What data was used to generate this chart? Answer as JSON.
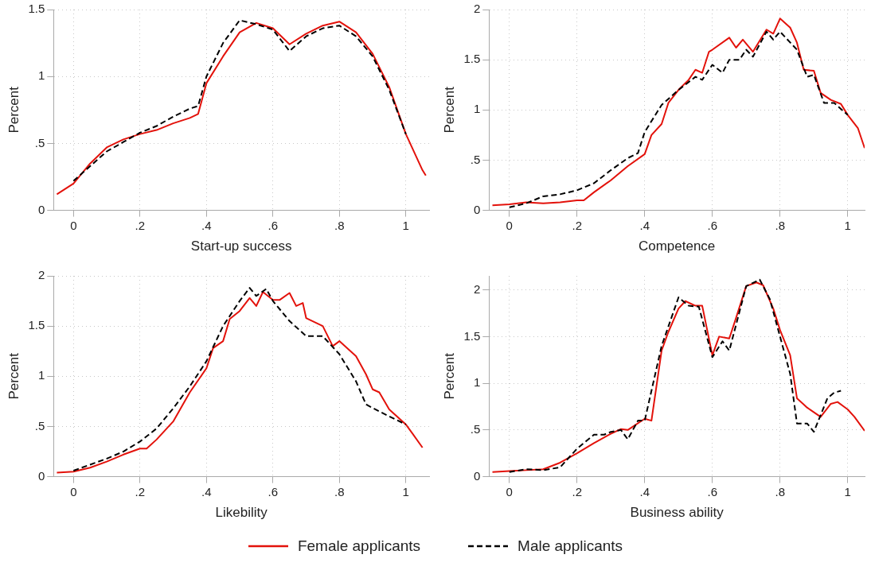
{
  "chart_data": [
    {
      "type": "line",
      "xlabel": "Start-up success",
      "ylabel": "Percent",
      "xlim": [
        -0.06,
        1.07
      ],
      "ylim": [
        0,
        1.5
      ],
      "grid": true,
      "legend": "bottom",
      "marker": "none",
      "xticks": [
        {
          "value": 0,
          "label": "0"
        },
        {
          "value": 0.2,
          "label": ".2"
        },
        {
          "value": 0.4,
          "label": ".4"
        },
        {
          "value": 0.6,
          "label": ".6"
        },
        {
          "value": 0.8,
          "label": ".8"
        },
        {
          "value": 1,
          "label": "1"
        }
      ],
      "yticks": [
        {
          "value": 0,
          "label": "0"
        },
        {
          "value": 0.5,
          "label": ".5"
        },
        {
          "value": 1,
          "label": "1"
        },
        {
          "value": 1.5,
          "label": "1.5"
        }
      ],
      "series": [
        {
          "name": "Female applicants",
          "color": "#e3120b",
          "line_style": "solid",
          "x": [
            -0.05,
            0,
            0.05,
            0.1,
            0.15,
            0.2,
            0.25,
            0.3,
            0.35,
            0.375,
            0.4,
            0.45,
            0.5,
            0.55,
            0.6,
            0.65,
            0.7,
            0.75,
            0.8,
            0.85,
            0.9,
            0.95,
            1.0,
            1.05,
            1.06
          ],
          "values": [
            0.12,
            0.2,
            0.35,
            0.47,
            0.53,
            0.57,
            0.6,
            0.65,
            0.69,
            0.72,
            0.95,
            1.15,
            1.33,
            1.4,
            1.36,
            1.24,
            1.32,
            1.38,
            1.41,
            1.33,
            1.17,
            0.92,
            0.57,
            0.3,
            0.26
          ]
        },
        {
          "name": "Male applicants",
          "color": "#000000",
          "line_style": "dashed",
          "x": [
            0,
            0.05,
            0.1,
            0.15,
            0.2,
            0.25,
            0.3,
            0.35,
            0.375,
            0.4,
            0.45,
            0.5,
            0.55,
            0.6,
            0.65,
            0.7,
            0.75,
            0.8,
            0.85,
            0.9,
            0.95,
            1.0
          ],
          "values": [
            0.22,
            0.33,
            0.44,
            0.51,
            0.58,
            0.63,
            0.7,
            0.76,
            0.78,
            1.0,
            1.25,
            1.42,
            1.39,
            1.35,
            1.19,
            1.3,
            1.36,
            1.38,
            1.3,
            1.15,
            0.9,
            0.57
          ]
        }
      ]
    },
    {
      "type": "line",
      "xlabel": "Competence",
      "ylabel": "Percent",
      "xlim": [
        -0.06,
        1.05
      ],
      "ylim": [
        0,
        2
      ],
      "grid": true,
      "marker": "none",
      "xticks": [
        {
          "value": 0,
          "label": "0"
        },
        {
          "value": 0.2,
          "label": ".2"
        },
        {
          "value": 0.4,
          "label": ".4"
        },
        {
          "value": 0.6,
          "label": ".6"
        },
        {
          "value": 0.8,
          "label": ".8"
        },
        {
          "value": 1,
          "label": "1"
        }
      ],
      "yticks": [
        {
          "value": 0,
          "label": "0"
        },
        {
          "value": 0.5,
          "label": ".5"
        },
        {
          "value": 1,
          "label": "1"
        },
        {
          "value": 1.5,
          "label": "1.5"
        },
        {
          "value": 2,
          "label": "2"
        }
      ],
      "series": [
        {
          "color": "#e3120b",
          "line_style": "solid",
          "x": [
            -0.05,
            0,
            0.05,
            0.1,
            0.15,
            0.2,
            0.22,
            0.25,
            0.3,
            0.35,
            0.4,
            0.42,
            0.45,
            0.47,
            0.5,
            0.53,
            0.55,
            0.57,
            0.59,
            0.6,
            0.65,
            0.67,
            0.69,
            0.72,
            0.76,
            0.78,
            0.8,
            0.83,
            0.85,
            0.87,
            0.9,
            0.92,
            0.95,
            0.98,
            1.0,
            1.03,
            1.05
          ],
          "values": [
            0.05,
            0.06,
            0.08,
            0.07,
            0.08,
            0.1,
            0.1,
            0.18,
            0.3,
            0.44,
            0.56,
            0.75,
            0.86,
            1.07,
            1.2,
            1.3,
            1.4,
            1.37,
            1.58,
            1.6,
            1.72,
            1.62,
            1.7,
            1.58,
            1.8,
            1.76,
            1.91,
            1.82,
            1.67,
            1.4,
            1.39,
            1.17,
            1.1,
            1.06,
            0.95,
            0.82,
            0.62
          ]
        },
        {
          "color": "#000000",
          "line_style": "dashed",
          "x": [
            0,
            0.05,
            0.1,
            0.15,
            0.2,
            0.25,
            0.3,
            0.35,
            0.38,
            0.4,
            0.45,
            0.5,
            0.55,
            0.57,
            0.6,
            0.63,
            0.65,
            0.68,
            0.7,
            0.72,
            0.76,
            0.78,
            0.8,
            0.85,
            0.88,
            0.9,
            0.93,
            0.96,
            1.0
          ],
          "values": [
            0.03,
            0.07,
            0.14,
            0.16,
            0.2,
            0.27,
            0.4,
            0.52,
            0.57,
            0.78,
            1.05,
            1.2,
            1.33,
            1.3,
            1.45,
            1.37,
            1.5,
            1.5,
            1.6,
            1.53,
            1.78,
            1.7,
            1.78,
            1.6,
            1.33,
            1.35,
            1.07,
            1.07,
            0.95
          ]
        }
      ]
    },
    {
      "type": "line",
      "xlabel": "Likebility",
      "ylabel": "Percent",
      "xlim": [
        -0.06,
        1.07
      ],
      "ylim": [
        0,
        2
      ],
      "grid": true,
      "marker": "none",
      "xticks": [
        {
          "value": 0,
          "label": "0"
        },
        {
          "value": 0.2,
          "label": ".2"
        },
        {
          "value": 0.4,
          "label": ".4"
        },
        {
          "value": 0.6,
          "label": ".6"
        },
        {
          "value": 0.8,
          "label": ".8"
        },
        {
          "value": 1,
          "label": "1"
        }
      ],
      "yticks": [
        {
          "value": 0,
          "label": "0"
        },
        {
          "value": 0.5,
          "label": ".5"
        },
        {
          "value": 1,
          "label": "1"
        },
        {
          "value": 1.5,
          "label": "1.5"
        },
        {
          "value": 2,
          "label": "2"
        }
      ],
      "series": [
        {
          "color": "#e3120b",
          "line_style": "solid",
          "x": [
            -0.05,
            0,
            0.05,
            0.1,
            0.15,
            0.2,
            0.22,
            0.25,
            0.3,
            0.35,
            0.4,
            0.42,
            0.45,
            0.47,
            0.5,
            0.53,
            0.55,
            0.57,
            0.6,
            0.62,
            0.65,
            0.67,
            0.69,
            0.7,
            0.75,
            0.78,
            0.8,
            0.85,
            0.88,
            0.9,
            0.92,
            0.95,
            1.0,
            1.02,
            1.05
          ],
          "values": [
            0.04,
            0.05,
            0.09,
            0.15,
            0.22,
            0.28,
            0.28,
            0.37,
            0.55,
            0.84,
            1.08,
            1.28,
            1.35,
            1.57,
            1.65,
            1.78,
            1.7,
            1.84,
            1.76,
            1.76,
            1.83,
            1.7,
            1.73,
            1.58,
            1.5,
            1.3,
            1.35,
            1.2,
            1.02,
            0.87,
            0.84,
            0.67,
            0.52,
            0.43,
            0.29
          ]
        },
        {
          "color": "#000000",
          "line_style": "dashed",
          "x": [
            0,
            0.05,
            0.1,
            0.15,
            0.2,
            0.25,
            0.3,
            0.35,
            0.4,
            0.45,
            0.5,
            0.53,
            0.55,
            0.58,
            0.6,
            0.65,
            0.7,
            0.75,
            0.8,
            0.85,
            0.88,
            0.92,
            0.95,
            1.0
          ],
          "values": [
            0.06,
            0.12,
            0.18,
            0.25,
            0.35,
            0.48,
            0.68,
            0.9,
            1.15,
            1.5,
            1.75,
            1.88,
            1.8,
            1.87,
            1.75,
            1.55,
            1.4,
            1.4,
            1.22,
            0.95,
            0.72,
            0.65,
            0.6,
            0.52
          ]
        }
      ]
    },
    {
      "type": "line",
      "xlabel": "Business ability",
      "ylabel": "Percent",
      "xlim": [
        -0.06,
        1.05
      ],
      "ylim": [
        0,
        2.15
      ],
      "grid": true,
      "marker": "none",
      "xticks": [
        {
          "value": 0,
          "label": "0"
        },
        {
          "value": 0.2,
          "label": ".2"
        },
        {
          "value": 0.4,
          "label": ".4"
        },
        {
          "value": 0.6,
          "label": ".6"
        },
        {
          "value": 0.8,
          "label": ".8"
        },
        {
          "value": 1,
          "label": "1"
        }
      ],
      "yticks": [
        {
          "value": 0,
          "label": "0"
        },
        {
          "value": 0.5,
          "label": ".5"
        },
        {
          "value": 1,
          "label": "1"
        },
        {
          "value": 1.5,
          "label": "1.5"
        },
        {
          "value": 2,
          "label": "2"
        }
      ],
      "series": [
        {
          "color": "#e3120b",
          "line_style": "solid",
          "x": [
            -0.05,
            0,
            0.05,
            0.1,
            0.15,
            0.2,
            0.25,
            0.3,
            0.33,
            0.35,
            0.4,
            0.42,
            0.45,
            0.47,
            0.5,
            0.52,
            0.55,
            0.57,
            0.6,
            0.62,
            0.65,
            0.67,
            0.7,
            0.73,
            0.75,
            0.78,
            0.8,
            0.83,
            0.85,
            0.88,
            0.92,
            0.95,
            0.97,
            1.0,
            1.02,
            1.05
          ],
          "values": [
            0.05,
            0.06,
            0.07,
            0.08,
            0.15,
            0.25,
            0.36,
            0.46,
            0.51,
            0.5,
            0.62,
            0.6,
            1.35,
            1.55,
            1.8,
            1.88,
            1.83,
            1.83,
            1.3,
            1.5,
            1.48,
            1.7,
            2.04,
            2.08,
            2.05,
            1.8,
            1.57,
            1.3,
            0.84,
            0.74,
            0.64,
            0.78,
            0.8,
            0.72,
            0.64,
            0.49
          ]
        },
        {
          "color": "#000000",
          "line_style": "dashed",
          "x": [
            0,
            0.05,
            0.1,
            0.15,
            0.2,
            0.25,
            0.28,
            0.3,
            0.33,
            0.35,
            0.38,
            0.4,
            0.45,
            0.5,
            0.53,
            0.56,
            0.6,
            0.63,
            0.65,
            0.7,
            0.74,
            0.77,
            0.8,
            0.83,
            0.85,
            0.88,
            0.9,
            0.94,
            0.96,
            0.98
          ],
          "values": [
            0.05,
            0.08,
            0.07,
            0.1,
            0.3,
            0.45,
            0.45,
            0.48,
            0.5,
            0.4,
            0.6,
            0.6,
            1.4,
            1.92,
            1.83,
            1.82,
            1.28,
            1.45,
            1.35,
            2.04,
            2.11,
            1.9,
            1.5,
            1.1,
            0.57,
            0.57,
            0.48,
            0.84,
            0.9,
            0.92
          ]
        }
      ]
    }
  ]
}
